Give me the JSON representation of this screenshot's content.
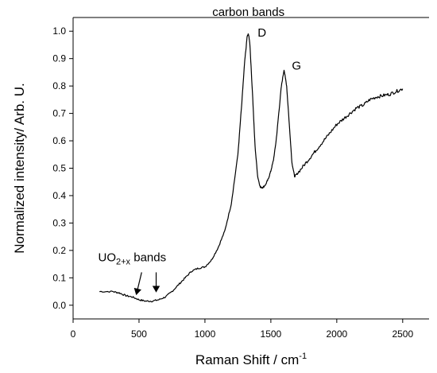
{
  "chart_data": {
    "type": "line",
    "title": "",
    "xlabel": "Raman Shift / cm",
    "xlabel_sup": "-1",
    "ylabel": "Normalized intensity/ Arb. U.",
    "xlim": [
      0,
      2700
    ],
    "ylim": [
      -0.05,
      1.05
    ],
    "x_ticks": [
      0,
      500,
      1000,
      1500,
      2000,
      2500
    ],
    "x_tick_labels": [
      "0",
      "500",
      "1000",
      "1500",
      "2000",
      "2500"
    ],
    "y_ticks": [
      0.0,
      0.1,
      0.2,
      0.3,
      0.4,
      0.5,
      0.6,
      0.7,
      0.8,
      0.9,
      1.0
    ],
    "y_tick_labels": [
      "0.0",
      "0.1",
      "0.2",
      "0.3",
      "0.4",
      "0.5",
      "0.6",
      "0.7",
      "0.8",
      "0.9",
      "1.0"
    ],
    "grid": false,
    "line_color": "#000000",
    "series": [
      {
        "x": [
          200,
          300,
          350,
          400,
          450,
          500,
          550,
          600,
          650,
          700,
          750,
          800,
          850,
          900,
          950,
          1000,
          1050,
          1100,
          1150,
          1200,
          1250,
          1280,
          1300,
          1320,
          1330,
          1340,
          1360,
          1380,
          1400,
          1420,
          1440,
          1460,
          1480,
          1500,
          1520,
          1540,
          1560,
          1580,
          1600,
          1620,
          1640,
          1660,
          1680,
          1700,
          1750,
          1800,
          1850,
          1900,
          1950,
          2000,
          2050,
          2100,
          2150,
          2200,
          2250,
          2300,
          2350,
          2400,
          2450,
          2500
        ],
        "y": [
          0.05,
          0.05,
          0.045,
          0.035,
          0.03,
          0.02,
          0.015,
          0.015,
          0.02,
          0.03,
          0.05,
          0.075,
          0.1,
          0.125,
          0.135,
          0.14,
          0.165,
          0.21,
          0.27,
          0.37,
          0.55,
          0.74,
          0.88,
          0.98,
          0.99,
          0.96,
          0.78,
          0.58,
          0.47,
          0.43,
          0.43,
          0.44,
          0.46,
          0.49,
          0.53,
          0.6,
          0.7,
          0.8,
          0.86,
          0.8,
          0.66,
          0.52,
          0.47,
          0.48,
          0.51,
          0.54,
          0.57,
          0.6,
          0.63,
          0.66,
          0.68,
          0.7,
          0.72,
          0.73,
          0.75,
          0.76,
          0.765,
          0.77,
          0.78,
          0.79
        ]
      }
    ],
    "annotations": [
      {
        "text": "carbon bands",
        "x": 1330,
        "y": 1.08
      },
      {
        "text": "D",
        "x": 1400,
        "y": 0.98
      },
      {
        "text": "G",
        "x": 1660,
        "y": 0.86
      },
      {
        "text": "UO",
        "sub": "2+x",
        "suffix": " bands",
        "x": 190,
        "y": 0.16
      }
    ],
    "arrows": [
      {
        "from": [
          520,
          0.12
        ],
        "to": [
          480,
          0.04
        ]
      },
      {
        "from": [
          630,
          0.12
        ],
        "to": [
          630,
          0.05
        ]
      }
    ]
  }
}
